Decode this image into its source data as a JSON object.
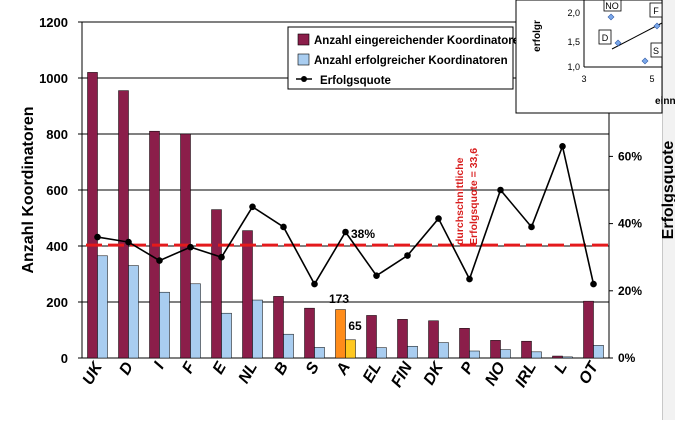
{
  "chart_data": {
    "type": "bar",
    "categories": [
      "UK",
      "D",
      "I",
      "F",
      "E",
      "NL",
      "B",
      "S",
      "A",
      "EL",
      "FIN",
      "DK",
      "P",
      "NO",
      "IRL",
      "L",
      "OT"
    ],
    "ylabel": "Anzahl Koordinatoren",
    "y2label": "Erfolgsquote",
    "ylim": [
      0,
      1200
    ],
    "y2lim": [
      0,
      1
    ],
    "yticks": [
      "0",
      "200",
      "400",
      "600",
      "800",
      "1000",
      "1200"
    ],
    "y2ticks": [
      "0%",
      "20%",
      "40%",
      "60%"
    ],
    "grid": true,
    "legend_placement": "top-center",
    "series": [
      {
        "name": "Anzahl eingereichender Koordinatoren",
        "type": "bar",
        "color": "#8b1e4a",
        "values": [
          1020,
          955,
          810,
          800,
          530,
          455,
          220,
          178,
          173,
          152,
          138,
          133,
          106,
          63,
          60,
          7,
          203
        ]
      },
      {
        "name": "Anzahl erfolgreicher Koordinatoren",
        "type": "bar",
        "color": "#a9cdf0",
        "values": [
          365,
          330,
          235,
          265,
          160,
          207,
          85,
          38,
          65,
          37,
          42,
          55,
          25,
          30,
          22,
          4,
          45
        ]
      },
      {
        "name": "Erfolgsquote",
        "type": "line",
        "axis": "secondary",
        "color": "#000000",
        "values": [
          0.36,
          0.345,
          0.29,
          0.33,
          0.3,
          0.45,
          0.39,
          0.22,
          0.375,
          0.245,
          0.305,
          0.415,
          0.235,
          0.5,
          0.39,
          0.63,
          0.22
        ]
      }
    ],
    "highlight": {
      "category": "A",
      "bar1_color": "#ff8c1a",
      "bar2_color": "#ffc820"
    },
    "annotations": {
      "rate_A": "38%",
      "bar1_A": "173",
      "bar2_A": "65",
      "avg_line1": "durchschnittliche",
      "avg_line2": "Erfolgsquote = 33,6",
      "avg_value": 0.336
    },
    "inset": {
      "ylabel": "erfolgr",
      "xlabel": "einn",
      "yticks": [
        "1,0",
        "1,5",
        "2,0"
      ],
      "xticks": [
        "3",
        "5"
      ],
      "points": [
        "NO",
        "F",
        "D",
        "S"
      ]
    }
  }
}
